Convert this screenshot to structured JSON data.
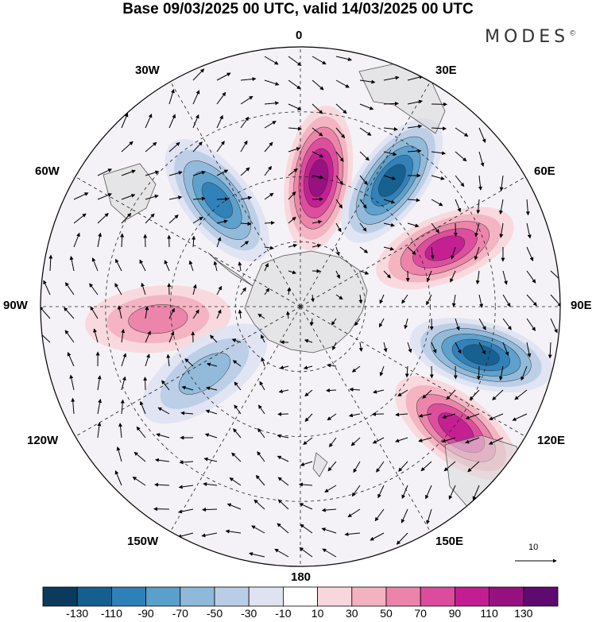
{
  "title": "Base 09/03/2025 00 UTC, valid 14/03/2025 00 UTC",
  "brand": {
    "text": "MODES",
    "mark": "©"
  },
  "longitude_labels": [
    "0",
    "30E",
    "60E",
    "90E",
    "120E",
    "150E",
    "180",
    "150W",
    "120W",
    "90W",
    "60W",
    "30W"
  ],
  "reference_vector": {
    "label": "10"
  },
  "colorbar": {
    "labels": [
      "-130",
      "-110",
      "-90",
      "-70",
      "-50",
      "-30",
      "-10",
      "10",
      "30",
      "50",
      "70",
      "90",
      "110",
      "130"
    ],
    "colors": [
      "#0a3b5c",
      "#155f8e",
      "#2e80b8",
      "#5b9fcb",
      "#8fb9da",
      "#b9cde6",
      "#dfe3f1",
      "#ffffff",
      "#f8d7dc",
      "#f3b2c0",
      "#ec83aa",
      "#dd4b9d",
      "#c21d91",
      "#96117f",
      "#5e0a6e"
    ]
  },
  "map": {
    "projection": "polar stereographic, South Pole centred",
    "field": "shaded anomaly with wind vectors",
    "anomaly_centers": [
      {
        "lon": 8,
        "dist": 0.5,
        "sign": 1,
        "amp": 115,
        "color": "#c21d91"
      },
      {
        "lon": 36,
        "dist": 0.6,
        "sign": -1,
        "amp": 125,
        "color": "#155f8e"
      },
      {
        "lon": 68,
        "dist": 0.6,
        "sign": 1,
        "amp": 105,
        "color": "#c21d91"
      },
      {
        "lon": 105,
        "dist": 0.72,
        "sign": -1,
        "amp": 120,
        "color": "#155f8e"
      },
      {
        "lon": 128,
        "dist": 0.76,
        "sign": 1,
        "amp": 95,
        "color": "#dd4b9d"
      },
      {
        "lon": -38,
        "dist": 0.52,
        "sign": -1,
        "amp": 95,
        "color": "#2e80b8"
      },
      {
        "lon": -95,
        "dist": 0.55,
        "sign": 1,
        "amp": 60,
        "color": "#ec83aa"
      },
      {
        "lon": -125,
        "dist": 0.45,
        "sign": -1,
        "amp": 50,
        "color": "#8fb9da"
      }
    ]
  }
}
